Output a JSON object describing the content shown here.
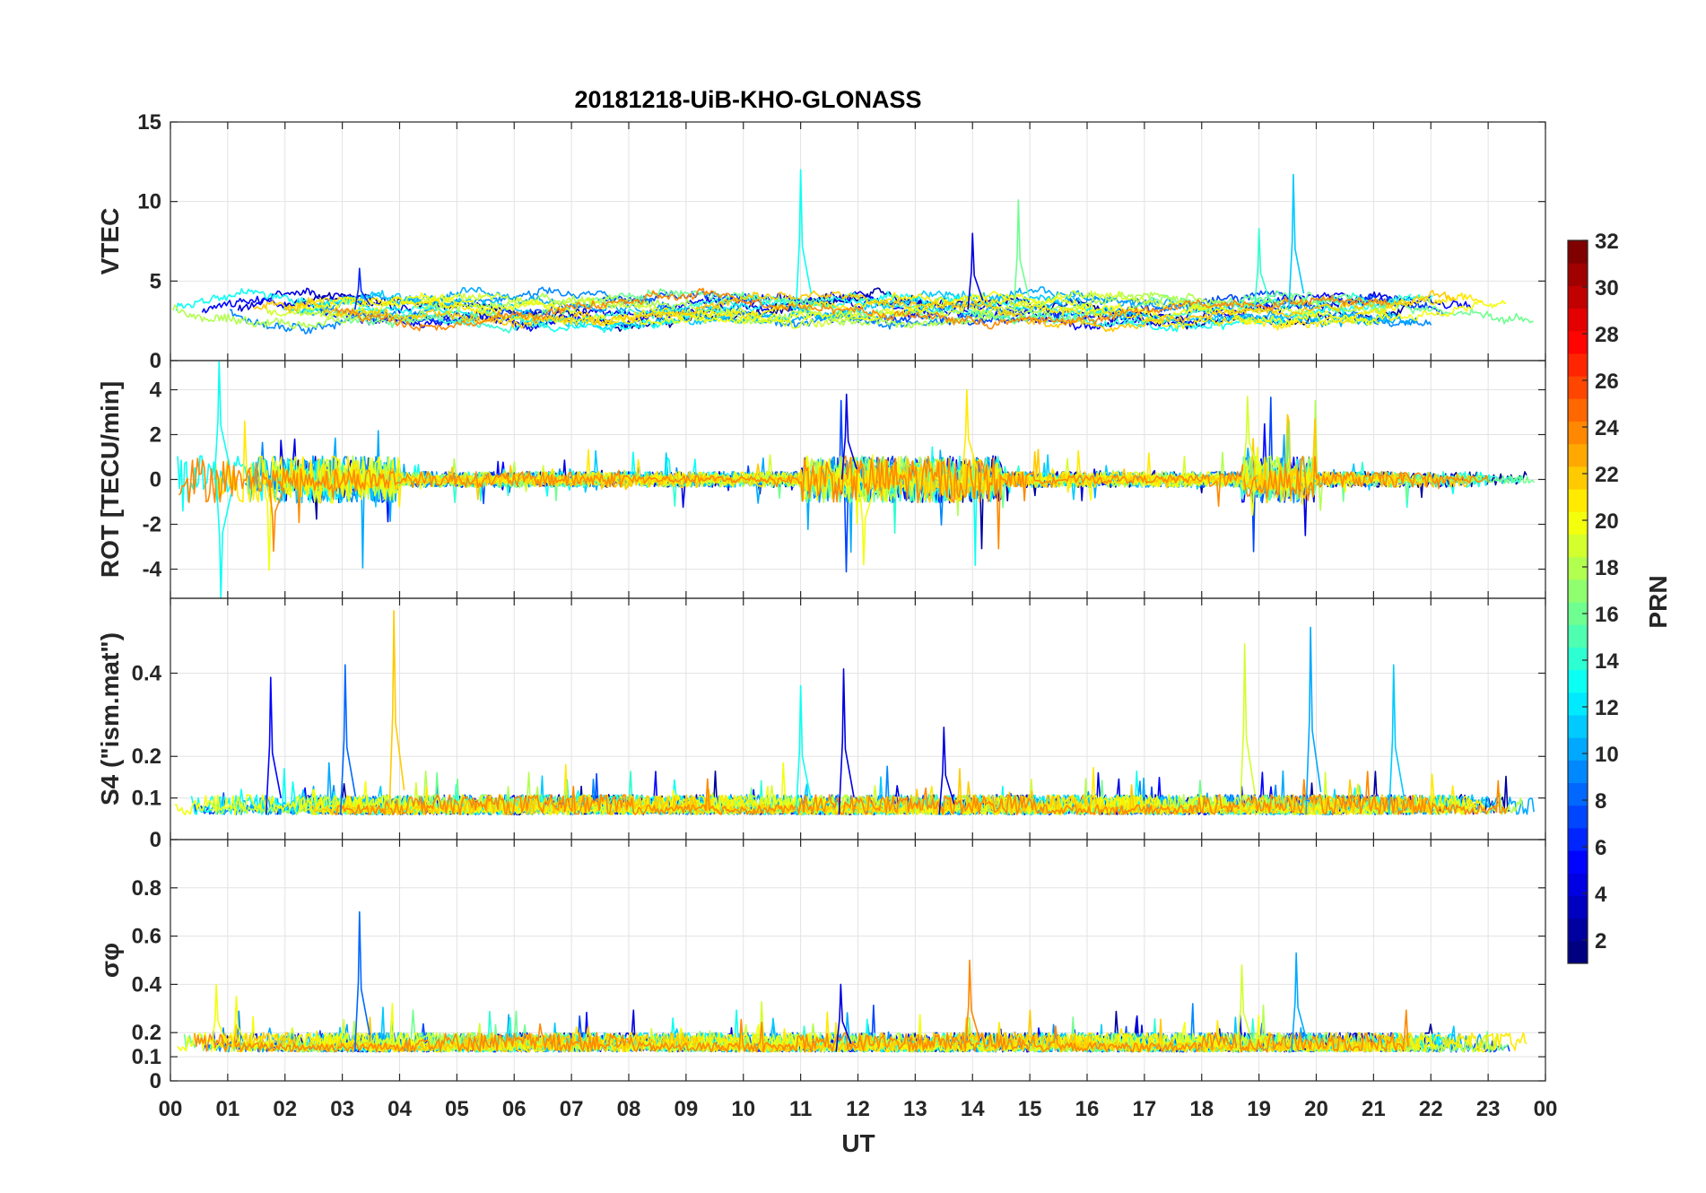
{
  "chart_data": {
    "type": "line",
    "title": "20181218-UiB-KHO-GLONASS",
    "xlabel": "UT",
    "x_range_hours": [
      0,
      24
    ],
    "x_tick_labels": [
      "00",
      "01",
      "02",
      "03",
      "04",
      "05",
      "06",
      "07",
      "08",
      "09",
      "10",
      "11",
      "12",
      "13",
      "14",
      "15",
      "16",
      "17",
      "18",
      "19",
      "20",
      "21",
      "22",
      "23",
      "00"
    ],
    "panels": [
      {
        "id": "vtec",
        "ylabel": "VTEC",
        "ylim": [
          0,
          15
        ],
        "yticks": [
          0,
          5,
          10,
          15
        ],
        "ytick_labels": [
          "0",
          "5",
          "10",
          "15"
        ],
        "kind": "tec",
        "baseline": 3.2,
        "noise": 0.9,
        "spikes": [
          {
            "t": 11.0,
            "v": 12.0,
            "prn": 13
          },
          {
            "t": 14.8,
            "v": 10.1,
            "prn": 16
          },
          {
            "t": 19.6,
            "v": 11.7,
            "prn": 11
          },
          {
            "t": 14.0,
            "v": 8.0,
            "prn": 4
          },
          {
            "t": 19.0,
            "v": 8.3,
            "prn": 14
          },
          {
            "t": 3.3,
            "v": 5.8,
            "prn": 6
          }
        ]
      },
      {
        "id": "rot",
        "ylabel": "ROT [TECU/min]",
        "ylim": [
          -5.3,
          5.3
        ],
        "yticks": [
          -4,
          -2,
          0,
          2,
          4
        ],
        "ytick_labels": [
          "-4",
          "-2",
          "0",
          "2",
          "4"
        ],
        "kind": "rot",
        "baseline": 0,
        "noise": 0.25,
        "spikes": [
          {
            "t": 0.85,
            "v": 5.3,
            "prn": 13
          },
          {
            "t": 0.88,
            "v": -5.3,
            "prn": 13
          },
          {
            "t": 11.8,
            "v": 3.8,
            "prn": 4
          },
          {
            "t": 13.9,
            "v": 4.0,
            "prn": 21
          },
          {
            "t": 12.1,
            "v": -3.8,
            "prn": 20
          },
          {
            "t": 1.8,
            "v": -3.2,
            "prn": 24
          },
          {
            "t": 18.8,
            "v": 3.7,
            "prn": 19
          }
        ]
      },
      {
        "id": "s4",
        "ylabel": "S4 (\"ism.mat\")",
        "ylim": [
          0,
          0.58
        ],
        "yticks": [
          0,
          0.1,
          0.2,
          0.4
        ],
        "ytick_labels": [
          "0",
          "0.1",
          "0.2",
          "0.4"
        ],
        "kind": "index",
        "baseline": 0.06,
        "noise": 0.03,
        "spikes": [
          {
            "t": 1.75,
            "v": 0.39,
            "prn": 5
          },
          {
            "t": 3.05,
            "v": 0.42,
            "prn": 8
          },
          {
            "t": 3.9,
            "v": 0.55,
            "prn": 22
          },
          {
            "t": 11.0,
            "v": 0.37,
            "prn": 13
          },
          {
            "t": 11.75,
            "v": 0.41,
            "prn": 4
          },
          {
            "t": 18.75,
            "v": 0.47,
            "prn": 19
          },
          {
            "t": 19.9,
            "v": 0.51,
            "prn": 10
          },
          {
            "t": 21.35,
            "v": 0.42,
            "prn": 11
          },
          {
            "t": 13.5,
            "v": 0.27,
            "prn": 4
          }
        ]
      },
      {
        "id": "sigma",
        "ylabel": "σφ",
        "ylim": [
          0,
          1.0
        ],
        "yticks": [
          0,
          0.1,
          0.2,
          0.4,
          0.6,
          0.8
        ],
        "ytick_labels": [
          "0",
          "0.1",
          "0.2",
          "0.4",
          "0.6",
          "0.8"
        ],
        "kind": "index",
        "baseline": 0.12,
        "noise": 0.05,
        "spikes": [
          {
            "t": 3.3,
            "v": 0.7,
            "prn": 8
          },
          {
            "t": 13.95,
            "v": 0.5,
            "prn": 24
          },
          {
            "t": 19.65,
            "v": 0.53,
            "prn": 10
          },
          {
            "t": 18.7,
            "v": 0.48,
            "prn": 19
          },
          {
            "t": 0.8,
            "v": 0.4,
            "prn": 20
          },
          {
            "t": 1.15,
            "v": 0.35,
            "prn": 20
          },
          {
            "t": 11.7,
            "v": 0.4,
            "prn": 4
          }
        ]
      }
    ],
    "series_prns": [
      2,
      4,
      5,
      7,
      9,
      10,
      11,
      13,
      14,
      16,
      18,
      19,
      20,
      21,
      22,
      24
    ],
    "colorbar": {
      "label": "PRN",
      "range": [
        1,
        32
      ],
      "ticks": [
        2,
        4,
        6,
        8,
        10,
        12,
        14,
        16,
        18,
        20,
        22,
        24,
        26,
        28,
        30,
        32
      ],
      "tick_labels": [
        "2",
        "4",
        "6",
        "8",
        "10",
        "12",
        "14",
        "16",
        "18",
        "20",
        "22",
        "24",
        "26",
        "28",
        "30",
        "32"
      ],
      "colormap": "jet"
    }
  }
}
